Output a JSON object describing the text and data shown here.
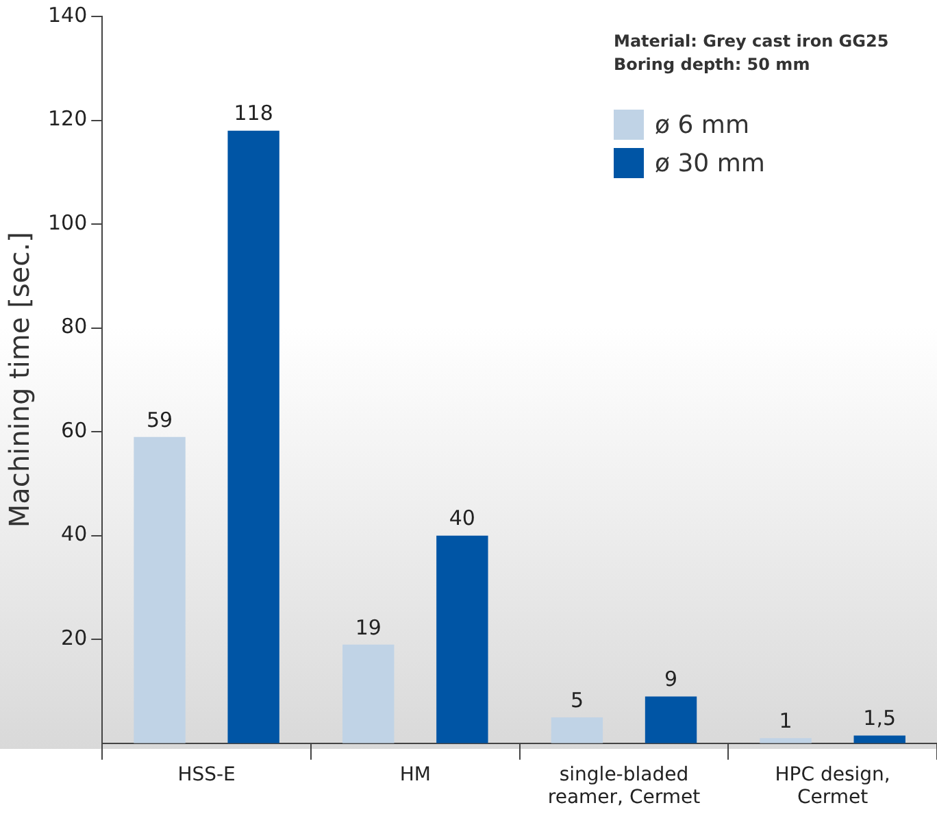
{
  "chart_data": {
    "type": "bar",
    "ylabel": "Machining time [sec.]",
    "categories": [
      "HSS-E",
      "HM",
      "single-bladed reamer, Cermet",
      "HPC design, Cermet"
    ],
    "series": [
      {
        "name": "ø 6 mm",
        "color": "#c0d3e6",
        "values": [
          59,
          19,
          5,
          1
        ],
        "value_labels": [
          "59",
          "19",
          "5",
          "1"
        ]
      },
      {
        "name": "ø 30 mm",
        "color": "#0055a5",
        "values": [
          118,
          40,
          9,
          1.5
        ],
        "value_labels": [
          "118",
          "40",
          "9",
          "1,5"
        ]
      }
    ],
    "ylim": [
      0,
      140
    ],
    "yticks": [
      20,
      40,
      60,
      80,
      100,
      120,
      140
    ],
    "grid": false,
    "legend": "top right",
    "annotations": [
      "Material: Grey cast iron GG25",
      "Boring depth: 50 mm"
    ]
  }
}
